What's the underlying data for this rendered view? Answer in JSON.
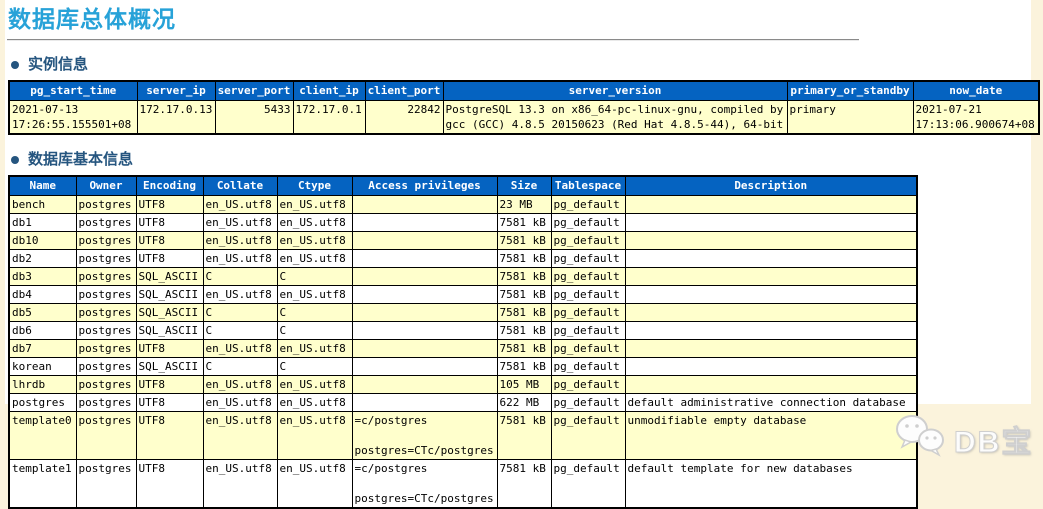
{
  "page": {
    "title": "数据库总体概况",
    "watermark_text": "DB宝"
  },
  "colors": {
    "title_blue": "#27A2D8",
    "section_heading_blue": "#25557F",
    "table_header_bg": "#0563C1",
    "table_header_text": "#FFFFFF",
    "row_stripe_yellow": "#FFFFCC",
    "page_background_cream": "#FBF3DC",
    "table_border": "#000000"
  },
  "sections": {
    "instance": {
      "heading": "实例信息",
      "table": {
        "headers": [
          "pg_start_time",
          "server_ip",
          "server_port",
          "client_ip",
          "client_port",
          "server_version",
          "primary_or_standby",
          "now_date"
        ],
        "rows": [
          [
            "2021-07-13 17:26:55.155501+08",
            "172.17.0.13",
            "5433",
            "172.17.0.1",
            "22842",
            "PostgreSQL 13.3 on x86_64-pc-linux-gnu, compiled by gcc (GCC) 4.8.5 20150623 (Red Hat 4.8.5-44), 64-bit",
            "primary",
            "2021-07-21 17:13:06.900674+08"
          ]
        ]
      }
    },
    "databases": {
      "heading": "数据库基本信息",
      "table": {
        "headers": [
          "Name",
          "Owner",
          "Encoding",
          "Collate",
          "Ctype",
          "Access privileges",
          "Size",
          "Tablespace",
          "Description"
        ],
        "rows": [
          [
            "bench",
            "postgres",
            "UTF8",
            "en_US.utf8",
            "en_US.utf8",
            "",
            "23 MB",
            "pg_default",
            ""
          ],
          [
            "db1",
            "postgres",
            "UTF8",
            "en_US.utf8",
            "en_US.utf8",
            "",
            "7581 kB",
            "pg_default",
            ""
          ],
          [
            "db10",
            "postgres",
            "UTF8",
            "en_US.utf8",
            "en_US.utf8",
            "",
            "7581 kB",
            "pg_default",
            ""
          ],
          [
            "db2",
            "postgres",
            "UTF8",
            "en_US.utf8",
            "en_US.utf8",
            "",
            "7581 kB",
            "pg_default",
            ""
          ],
          [
            "db3",
            "postgres",
            "SQL_ASCII",
            "C",
            "C",
            "",
            "7581 kB",
            "pg_default",
            ""
          ],
          [
            "db4",
            "postgres",
            "SQL_ASCII",
            "en_US.utf8",
            "en_US.utf8",
            "",
            "7581 kB",
            "pg_default",
            ""
          ],
          [
            "db5",
            "postgres",
            "SQL_ASCII",
            "C",
            "C",
            "",
            "7581 kB",
            "pg_default",
            ""
          ],
          [
            "db6",
            "postgres",
            "SQL_ASCII",
            "C",
            "C",
            "",
            "7581 kB",
            "pg_default",
            ""
          ],
          [
            "db7",
            "postgres",
            "UTF8",
            "en_US.utf8",
            "en_US.utf8",
            "",
            "7581 kB",
            "pg_default",
            ""
          ],
          [
            "korean",
            "postgres",
            "SQL_ASCII",
            "C",
            "C",
            "",
            "7581 kB",
            "pg_default",
            ""
          ],
          [
            "lhrdb",
            "postgres",
            "UTF8",
            "en_US.utf8",
            "en_US.utf8",
            "",
            "105 MB",
            "pg_default",
            ""
          ],
          [
            "postgres",
            "postgres",
            "UTF8",
            "en_US.utf8",
            "en_US.utf8",
            "",
            "622 MB",
            "pg_default",
            "default administrative connection database"
          ],
          [
            "template0",
            "postgres",
            "UTF8",
            "en_US.utf8",
            "en_US.utf8",
            "=c/postgres\n\npostgres=CTc/postgres",
            "7581 kB",
            "pg_default",
            "unmodifiable empty database"
          ],
          [
            "template1",
            "postgres",
            "UTF8",
            "en_US.utf8",
            "en_US.utf8",
            "=c/postgres\n\npostgres=CTc/postgres",
            "7581 kB",
            "pg_default",
            "default template for new databases"
          ]
        ]
      }
    }
  }
}
